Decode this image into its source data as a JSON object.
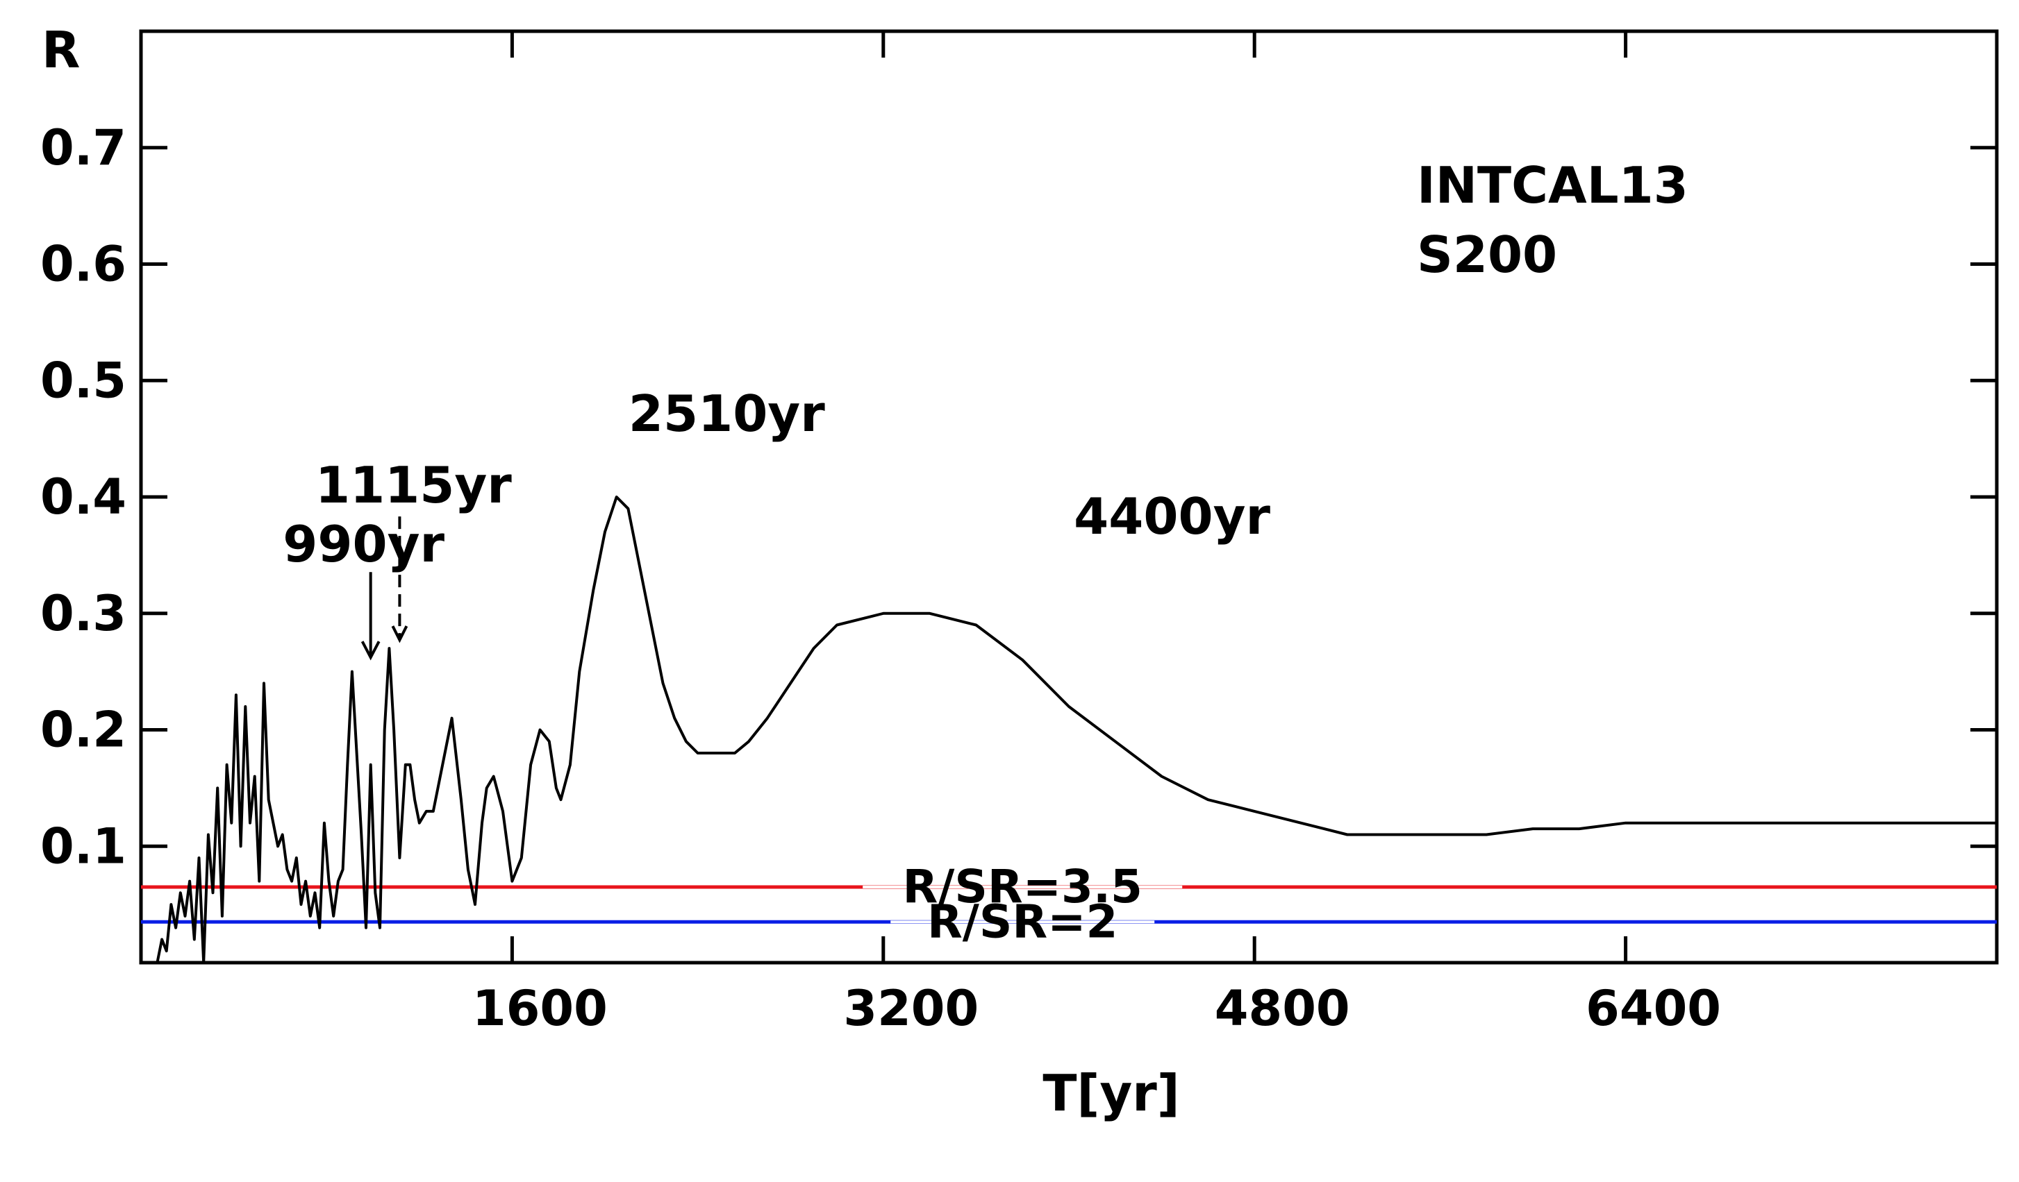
{
  "chart_data": {
    "type": "line",
    "title": "",
    "xlabel": "T[yr]",
    "ylabel": "R",
    "xlim": [
      0,
      8000
    ],
    "ylim": [
      0,
      0.8
    ],
    "x_ticks": [
      1600,
      3200,
      4800,
      6400
    ],
    "x_tick_labels": [
      "1600",
      "3200",
      "4800",
      "6400"
    ],
    "y_ticks": [
      0.1,
      0.2,
      0.3,
      0.4,
      0.5,
      0.6,
      0.7
    ],
    "y_tick_labels": [
      "0.1",
      "0.2",
      "0.3",
      "0.4",
      "0.5",
      "0.6",
      "0.7"
    ],
    "grid": false,
    "legend": [
      "INTCAL13",
      "S200"
    ],
    "series": [
      {
        "color": "#000000",
        "x": [
          70,
          90,
          110,
          130,
          150,
          170,
          190,
          210,
          230,
          250,
          270,
          290,
          310,
          330,
          350,
          370,
          390,
          410,
          430,
          450,
          470,
          490,
          510,
          530,
          550,
          570,
          590,
          610,
          630,
          650,
          670,
          690,
          710,
          730,
          750,
          770,
          790,
          810,
          830,
          850,
          870,
          890,
          910,
          930,
          950,
          970,
          990,
          1010,
          1030,
          1050,
          1070,
          1090,
          1115,
          1140,
          1160,
          1180,
          1200,
          1230,
          1260,
          1300,
          1340,
          1380,
          1410,
          1440,
          1470,
          1490,
          1520,
          1560,
          1600,
          1640,
          1680,
          1720,
          1760,
          1790,
          1810,
          1850,
          1890,
          1950,
          2000,
          2050,
          2100,
          2150,
          2200,
          2250,
          2300,
          2350,
          2400,
          2450,
          2510,
          2560,
          2620,
          2700,
          2800,
          2900,
          3000,
          3200,
          3400,
          3600,
          3800,
          4000,
          4200,
          4400,
          4600,
          4800,
          5000,
          5200,
          5400,
          5600,
          5800,
          6000,
          6200,
          6400,
          6600,
          6800,
          7000,
          7200,
          7400,
          7600,
          7800,
          8000
        ],
        "y": [
          0.0,
          0.02,
          0.01,
          0.05,
          0.03,
          0.06,
          0.04,
          0.07,
          0.02,
          0.09,
          0.0,
          0.11,
          0.06,
          0.15,
          0.04,
          0.17,
          0.12,
          0.23,
          0.1,
          0.22,
          0.12,
          0.16,
          0.07,
          0.24,
          0.14,
          0.12,
          0.1,
          0.11,
          0.08,
          0.07,
          0.09,
          0.05,
          0.07,
          0.04,
          0.06,
          0.03,
          0.12,
          0.07,
          0.04,
          0.07,
          0.08,
          0.17,
          0.25,
          0.18,
          0.11,
          0.03,
          0.17,
          0.06,
          0.03,
          0.2,
          0.27,
          0.2,
          0.09,
          0.17,
          0.17,
          0.14,
          0.12,
          0.13,
          0.13,
          0.17,
          0.21,
          0.14,
          0.08,
          0.05,
          0.12,
          0.15,
          0.16,
          0.13,
          0.07,
          0.09,
          0.17,
          0.2,
          0.19,
          0.15,
          0.14,
          0.17,
          0.25,
          0.32,
          0.37,
          0.4,
          0.39,
          0.34,
          0.29,
          0.24,
          0.21,
          0.19,
          0.18,
          0.18,
          0.18,
          0.18,
          0.19,
          0.21,
          0.24,
          0.27,
          0.29,
          0.3,
          0.3,
          0.29,
          0.26,
          0.22,
          0.19,
          0.16,
          0.14,
          0.13,
          0.12,
          0.11,
          0.11,
          0.11,
          0.11,
          0.115,
          0.115,
          0.12,
          0.12,
          0.12,
          0.12,
          0.12,
          0.12,
          0.12,
          0.12,
          0.12
        ]
      }
    ],
    "hlines": [
      {
        "label": "R/SR=3.5",
        "y": 0.065,
        "color": "#e8141c"
      },
      {
        "label": "R/SR=2",
        "y": 0.035,
        "color": "#0a1ee6"
      }
    ],
    "annotations": [
      {
        "text": "990yr",
        "x": 990,
        "y": 0.255
      },
      {
        "text": "1115yr",
        "x": 1115,
        "y": 0.27
      },
      {
        "text": "2510yr",
        "x": 2510,
        "y": 0.4
      },
      {
        "text": "4400yr",
        "x": 4400,
        "y": 0.3
      }
    ]
  }
}
